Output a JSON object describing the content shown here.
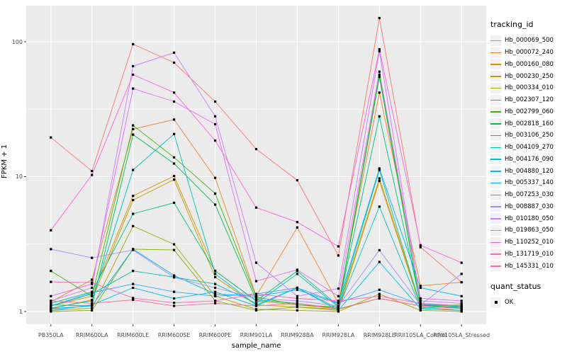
{
  "legend": {
    "tracking_title": "tracking_id",
    "quant_title": "quant_status",
    "quant_items": [
      {
        "label": "OK",
        "shape": "black-square"
      }
    ]
  },
  "panel": {
    "background": "#ebebeb",
    "grid_color": "#ffffff",
    "tick_text_color": "#4d4d4d",
    "point_color": "#000000"
  },
  "chart_data": {
    "type": "line",
    "title": "",
    "xlabel": "sample_name",
    "ylabel": "FPKM + 1",
    "y_scale": "log10",
    "ylim": [
      0.85,
      180
    ],
    "y_major_ticks": [
      1,
      10,
      100
    ],
    "y_tick_labels": [
      "1",
      "10",
      "100"
    ],
    "y_minor_gridlines": [
      3.162,
      31.623
    ],
    "grid": true,
    "legend_position": "right",
    "point_shape": "filled-black-square",
    "categories": [
      "PB350LA",
      "RRIM600LA",
      "RRIM600LE",
      "RRIM600SE",
      "RRIM600PE",
      "RRIM901LA",
      "RRIM928BA",
      "RRIM928LA",
      "RRIM928LE",
      "RRII105LA_Control",
      "RRII105LA_Stressed"
    ],
    "series": [
      {
        "name": "Hb_000069_500",
        "color": "#F8766D",
        "values": [
          19.5,
          11,
          96,
          70,
          36,
          16,
          9.4,
          2.6,
          150,
          3.0,
          1.65
        ]
      },
      {
        "name": "Hb_000072_240",
        "color": "#EA8331",
        "values": [
          1.18,
          1.72,
          22.5,
          26.5,
          9.8,
          1.3,
          4.2,
          1.15,
          42,
          1.55,
          1.65
        ]
      },
      {
        "name": "Hb_000160_080",
        "color": "#D89000",
        "values": [
          1.1,
          1.3,
          7.2,
          10.1,
          2.0,
          1.2,
          1.12,
          1.05,
          9.7,
          1.12,
          1.06
        ]
      },
      {
        "name": "Hb_000230_250",
        "color": "#C09B00",
        "values": [
          1.05,
          1.22,
          6.7,
          9.5,
          1.8,
          1.12,
          1.08,
          1.02,
          9.3,
          1.08,
          1.02
        ]
      },
      {
        "name": "Hb_000334_010",
        "color": "#A3A500",
        "values": [
          1.02,
          1.06,
          4.3,
          3.15,
          1.3,
          1.04,
          1.02,
          1.0,
          1.35,
          1.02,
          1.0
        ]
      },
      {
        "name": "Hb_002307_120",
        "color": "#7CAE00",
        "values": [
          1.0,
          1.02,
          2.9,
          2.86,
          1.2,
          1.02,
          1.08,
          1.04,
          1.25,
          1.1,
          1.12
        ]
      },
      {
        "name": "Hb_002799_060",
        "color": "#39B600",
        "values": [
          2.0,
          1.3,
          24,
          13.9,
          7.5,
          1.28,
          1.12,
          1.08,
          57,
          1.12,
          1.1
        ]
      },
      {
        "name": "Hb_002818_160",
        "color": "#00BB4E",
        "values": [
          1.12,
          1.1,
          20.5,
          12.5,
          6.2,
          1.22,
          1.15,
          1.05,
          55,
          1.1,
          1.08
        ]
      },
      {
        "name": "Hb_003106_250",
        "color": "#00BF7D",
        "values": [
          1.15,
          1.4,
          5.3,
          6.4,
          2.0,
          1.2,
          2.0,
          1.1,
          28,
          1.15,
          1.1
        ]
      },
      {
        "name": "Hb_004109_270",
        "color": "#00C1A3",
        "values": [
          1.1,
          1.35,
          2.0,
          1.8,
          1.6,
          1.15,
          1.9,
          1.08,
          11.2,
          1.1,
          1.06
        ]
      },
      {
        "name": "Hb_004176_090",
        "color": "#00BFC4",
        "values": [
          1.06,
          1.2,
          11.2,
          20.7,
          1.9,
          1.12,
          1.5,
          1.05,
          6.0,
          1.06,
          1.1
        ]
      },
      {
        "name": "Hb_004880_120",
        "color": "#00BAE0",
        "values": [
          1.02,
          1.12,
          1.5,
          1.25,
          1.4,
          1.1,
          1.5,
          1.02,
          2.33,
          1.05,
          1.02
        ]
      },
      {
        "name": "Hb_005337_140",
        "color": "#00B0F6",
        "values": [
          1.05,
          1.1,
          2.9,
          1.85,
          1.35,
          1.3,
          1.45,
          1.15,
          11.5,
          1.5,
          1.3
        ]
      },
      {
        "name": "Hb_007253_030",
        "color": "#35A2FF",
        "values": [
          1.1,
          1.38,
          1.6,
          1.4,
          1.3,
          1.35,
          1.5,
          1.16,
          1.45,
          1.13,
          1.1
        ]
      },
      {
        "name": "Hb_008887_030",
        "color": "#9590FF",
        "values": [
          2.9,
          2.5,
          2.86,
          1.79,
          1.5,
          1.25,
          1.2,
          1.1,
          2.85,
          1.12,
          1.9
        ]
      },
      {
        "name": "Hb_010180_050",
        "color": "#C77CFF",
        "values": [
          1.2,
          1.5,
          66,
          83,
          28,
          2.3,
          1.3,
          1.48,
          85,
          1.2,
          1.15
        ]
      },
      {
        "name": "Hb_019863_050",
        "color": "#E76BF3",
        "values": [
          1.3,
          1.6,
          45,
          36,
          24.5,
          1.68,
          2.04,
          1.3,
          60,
          1.25,
          1.2
        ]
      },
      {
        "name": "Hb_110252_010",
        "color": "#FA62DB",
        "values": [
          4.0,
          10.3,
          57,
          42,
          18.5,
          5.9,
          4.6,
          3.04,
          88,
          3.1,
          2.3
        ]
      },
      {
        "name": "Hb_131719_010",
        "color": "#FF62BC",
        "values": [
          1.66,
          1.64,
          1.26,
          1.16,
          1.2,
          1.35,
          1.25,
          1.2,
          1.3,
          1.15,
          1.1
        ]
      },
      {
        "name": "Hb_145331_010",
        "color": "#FF6A98",
        "values": [
          1.2,
          1.15,
          1.22,
          1.1,
          1.15,
          1.1,
          1.15,
          1.05,
          1.25,
          1.1,
          1.05
        ]
      }
    ]
  }
}
